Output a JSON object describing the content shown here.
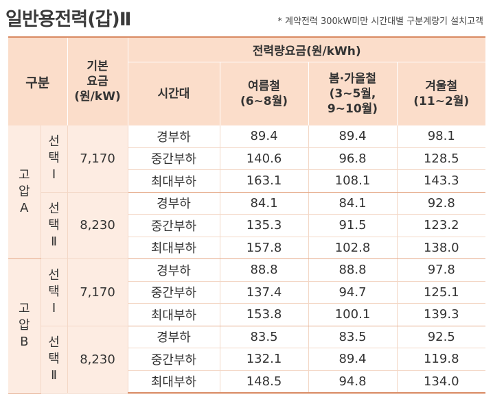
{
  "title": "일반용전력(갑)Ⅱ",
  "note": "* 계약전력 300kW미만 시간대별 구분계량기 설치고객",
  "headers": {
    "gubun": "구분",
    "basic_fee": [
      "기본",
      "요금",
      "(원/kW)"
    ],
    "energy_group": "전력량요금(원/kWh)",
    "period": "시간대",
    "summer": [
      "여름철",
      "(6~8월)"
    ],
    "spring_fall": [
      "봄·가을철",
      "(3~5월,",
      "9~10월)"
    ],
    "winter": [
      "겨울철",
      "(11~2월)"
    ]
  },
  "groups": [
    {
      "name_chars": [
        "고",
        "압",
        "A"
      ],
      "options": [
        {
          "option_chars": [
            "선",
            "택",
            "Ⅰ"
          ],
          "basic_fee": "7,170",
          "rows": [
            {
              "period": "경부하",
              "summer": "89.4",
              "spring_fall": "89.4",
              "winter": "98.1"
            },
            {
              "period": "중간부하",
              "summer": "140.6",
              "spring_fall": "96.8",
              "winter": "128.5"
            },
            {
              "period": "최대부하",
              "summer": "163.1",
              "spring_fall": "108.1",
              "winter": "143.3"
            }
          ]
        },
        {
          "option_chars": [
            "선",
            "택",
            "Ⅱ"
          ],
          "basic_fee": "8,230",
          "rows": [
            {
              "period": "경부하",
              "summer": "84.1",
              "spring_fall": "84.1",
              "winter": "92.8"
            },
            {
              "period": "중간부하",
              "summer": "135.3",
              "spring_fall": "91.5",
              "winter": "123.2"
            },
            {
              "period": "최대부하",
              "summer": "157.8",
              "spring_fall": "102.8",
              "winter": "138.0"
            }
          ]
        }
      ]
    },
    {
      "name_chars": [
        "고",
        "압",
        "B"
      ],
      "options": [
        {
          "option_chars": [
            "선",
            "택",
            "Ⅰ"
          ],
          "basic_fee": "7,170",
          "rows": [
            {
              "period": "경부하",
              "summer": "88.8",
              "spring_fall": "88.8",
              "winter": "97.8"
            },
            {
              "period": "중간부하",
              "summer": "137.4",
              "spring_fall": "94.7",
              "winter": "125.1"
            },
            {
              "period": "최대부하",
              "summer": "153.8",
              "spring_fall": "100.1",
              "winter": "139.3"
            }
          ]
        },
        {
          "option_chars": [
            "선",
            "택",
            "Ⅱ"
          ],
          "basic_fee": "8,230",
          "rows": [
            {
              "period": "경부하",
              "summer": "83.5",
              "spring_fall": "83.5",
              "winter": "92.5"
            },
            {
              "period": "중간부하",
              "summer": "132.1",
              "spring_fall": "89.4",
              "winter": "119.8"
            },
            {
              "period": "최대부하",
              "summer": "148.5",
              "spring_fall": "94.8",
              "winter": "134.0"
            }
          ]
        }
      ]
    }
  ],
  "colors": {
    "header_fill": "#fbddca",
    "row_fill": "#fdece2",
    "border": "#d98a62"
  }
}
